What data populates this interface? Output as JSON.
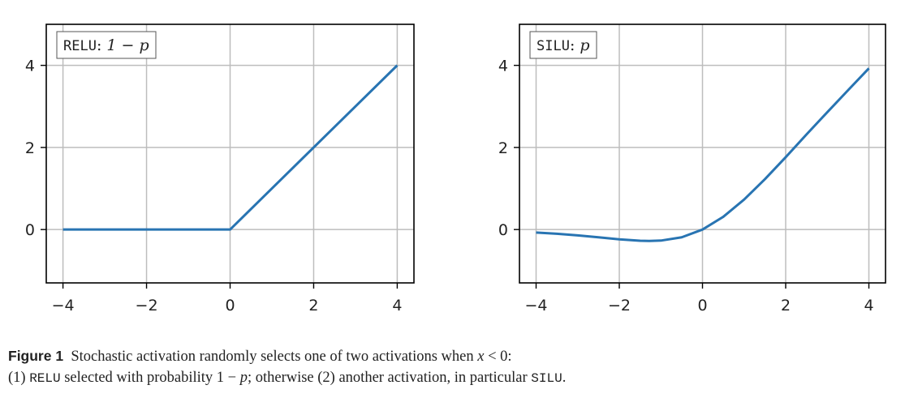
{
  "colors": {
    "line": "#2874b2",
    "grid": "#bdbdbd",
    "axis": "#000000"
  },
  "chart_data": [
    {
      "type": "line",
      "legend": {
        "name": "RELU",
        "sep": ":",
        "expr": "1 − p",
        "placement": "top-left"
      },
      "xlim": [
        -4.4,
        4.4
      ],
      "ylim": [
        -1.3,
        5.0
      ],
      "xticks": [
        -4,
        -2,
        0,
        2,
        4
      ],
      "xtick_labels": [
        "−4",
        "−2",
        "0",
        "2",
        "4"
      ],
      "yticks": [
        0,
        2,
        4
      ],
      "ytick_labels": [
        "0",
        "2",
        "4"
      ],
      "grid": true,
      "series": [
        {
          "x": [
            -4,
            0,
            4
          ],
          "y": [
            0,
            0,
            4
          ]
        }
      ]
    },
    {
      "type": "line",
      "legend": {
        "name": "SILU",
        "sep": ":",
        "expr": "p",
        "placement": "top-left"
      },
      "xlim": [
        -4.4,
        4.4
      ],
      "ylim": [
        -1.3,
        5.0
      ],
      "xticks": [
        -4,
        -2,
        0,
        2,
        4
      ],
      "xtick_labels": [
        "−4",
        "−2",
        "0",
        "2",
        "4"
      ],
      "yticks": [
        0,
        2,
        4
      ],
      "ytick_labels": [
        "0",
        "2",
        "4"
      ],
      "grid": true,
      "series": [
        {
          "x": [
            -4,
            -3.5,
            -3,
            -2.5,
            -2,
            -1.5,
            -1.28,
            -1,
            -0.5,
            0,
            0.5,
            1,
            1.5,
            2,
            2.5,
            3,
            3.5,
            4
          ],
          "y": [
            -0.072,
            -0.103,
            -0.142,
            -0.189,
            -0.238,
            -0.274,
            -0.278,
            -0.269,
            -0.189,
            0,
            0.311,
            0.731,
            1.227,
            1.762,
            2.317,
            2.858,
            3.395,
            3.928
          ]
        }
      ]
    }
  ],
  "caption": {
    "label": "Figure 1",
    "line1_a": "Stochastic activation randomly selects one of two activations when ",
    "line1_math_x": "x",
    "line1_math_rest": " < 0:",
    "line2_a": "(1) ",
    "line2_relu": "RELU",
    "line2_b": " selected with probability ",
    "line2_math_a": "1 − ",
    "line2_math_p": "p",
    "line2_c": "; otherwise (2) another activation, in particular ",
    "line2_silu": "SILU",
    "line2_d": "."
  }
}
